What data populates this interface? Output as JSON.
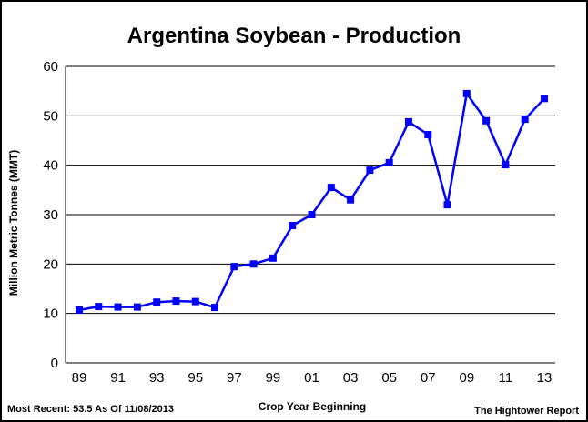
{
  "chart_data": {
    "type": "line",
    "title": "Argentina Soybean - Production",
    "xlabel": "Crop Year Beginning",
    "ylabel": "Million Metric Tonnes (MMT)",
    "x": [
      "89",
      "90",
      "91",
      "92",
      "93",
      "94",
      "95",
      "96",
      "97",
      "98",
      "99",
      "00",
      "01",
      "02",
      "03",
      "04",
      "05",
      "06",
      "07",
      "08",
      "09",
      "10",
      "11",
      "12",
      "13"
    ],
    "x_tick_labels": [
      "89",
      "91",
      "93",
      "95",
      "97",
      "99",
      "01",
      "03",
      "05",
      "07",
      "09",
      "11",
      "13"
    ],
    "series": [
      {
        "values": [
          10.7,
          11.4,
          11.3,
          11.3,
          12.3,
          12.5,
          12.4,
          11.2,
          19.5,
          20.0,
          21.2,
          27.8,
          30.0,
          35.5,
          33.0,
          39.0,
          40.5,
          48.8,
          46.2,
          32.0,
          54.5,
          49.0,
          40.1,
          49.3,
          53.5
        ],
        "color": "#0000ff"
      }
    ],
    "ylim": [
      0,
      60
    ],
    "y_ticks": [
      0,
      10,
      20,
      30,
      40,
      50,
      60
    ],
    "grid": true
  },
  "footer": {
    "left": "Most Recent: 53.5 As Of 11/08/2013",
    "right": "The Hightower Report"
  }
}
